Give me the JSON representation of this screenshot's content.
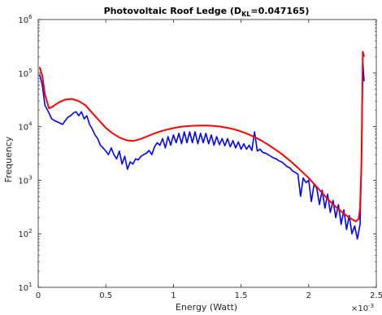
{
  "chart_data": {
    "type": "line",
    "title": "Photovoltaic Roof Ledge (D",
    "title_subscript": "KL",
    "title_suffix": "=0.047165)",
    "xlabel": "Energy (Watt)",
    "ylabel": "Frequency",
    "x_exponent_base": "×10",
    "x_exponent_power": "-3",
    "xlim": [
      0,
      0.0025
    ],
    "ylim": [
      10,
      1000000
    ],
    "yscale": "log",
    "grid": false,
    "x_ticks": [
      {
        "value": 0,
        "label": "0"
      },
      {
        "value": 0.0005,
        "label": "0.5"
      },
      {
        "value": 0.001,
        "label": "1"
      },
      {
        "value": 0.0015,
        "label": "1.5"
      },
      {
        "value": 0.002,
        "label": "2"
      },
      {
        "value": 0.0025,
        "label": "2.5"
      }
    ],
    "y_ticks": [
      {
        "value": 10,
        "base": "10",
        "power": "1"
      },
      {
        "value": 100,
        "base": "10",
        "power": "2"
      },
      {
        "value": 1000,
        "base": "10",
        "power": "3"
      },
      {
        "value": 10000,
        "base": "10",
        "power": "4"
      },
      {
        "value": 100000,
        "base": "10",
        "power": "5"
      },
      {
        "value": 1000000,
        "base": "10",
        "power": "6"
      }
    ],
    "series": [
      {
        "color": "#0000ff",
        "x": [
          1e-05,
          3e-05,
          5e-05,
          8e-05,
          0.0001,
          0.00012,
          0.00015,
          0.00018,
          0.0002,
          0.00022,
          0.00024,
          0.00026,
          0.00028,
          0.0003,
          0.00032,
          0.00034,
          0.00036,
          0.00038,
          0.0004,
          0.00042,
          0.00044,
          0.00046,
          0.00048,
          0.0005,
          0.00052,
          0.00054,
          0.00056,
          0.00058,
          0.0006,
          0.00062,
          0.00064,
          0.00066,
          0.00068,
          0.0007,
          0.00072,
          0.00074,
          0.00076,
          0.00078,
          0.0008,
          0.00082,
          0.00084,
          0.00086,
          0.00088,
          0.0009,
          0.00092,
          0.00094,
          0.00096,
          0.00098,
          0.001,
          0.00102,
          0.00104,
          0.00106,
          0.00108,
          0.0011,
          0.00112,
          0.00114,
          0.00116,
          0.00118,
          0.0012,
          0.00122,
          0.00124,
          0.00126,
          0.00128,
          0.0013,
          0.00132,
          0.00134,
          0.00136,
          0.00138,
          0.0014,
          0.00142,
          0.00144,
          0.00146,
          0.00148,
          0.0015,
          0.00152,
          0.00154,
          0.00156,
          0.00158,
          0.0016,
          0.00162,
          0.00164,
          0.00166,
          0.00168,
          0.0017,
          0.00172,
          0.00174,
          0.00176,
          0.00178,
          0.0018,
          0.00182,
          0.00184,
          0.00186,
          0.00188,
          0.0019,
          0.00192,
          0.00194,
          0.00196,
          0.00198,
          0.002,
          0.00202,
          0.00204,
          0.00206,
          0.00208,
          0.0021,
          0.00212,
          0.00214,
          0.00216,
          0.00218,
          0.0022,
          0.00222,
          0.00224,
          0.00226,
          0.00228,
          0.0023,
          0.00232,
          0.00234,
          0.00236,
          0.00237,
          0.00238,
          0.00239,
          0.0024,
          0.00241
        ],
        "y": [
          95000,
          60000,
          25000,
          18000,
          14000,
          13000,
          12000,
          11000,
          13000,
          15000,
          16000,
          18000,
          19000,
          16000,
          19000,
          14000,
          16000,
          11000,
          9000,
          7000,
          6000,
          4500,
          4000,
          3500,
          3000,
          4000,
          3000,
          2500,
          3500,
          2000,
          2800,
          1600,
          2200,
          2000,
          2500,
          2400,
          2800,
          3000,
          3200,
          3600,
          3000,
          4200,
          5000,
          4500,
          6000,
          4000,
          6500,
          4500,
          7000,
          5000,
          7500,
          4800,
          8000,
          5000,
          8000,
          5000,
          8000,
          4800,
          7500,
          5000,
          7500,
          4800,
          7000,
          4500,
          6500,
          4600,
          6000,
          4400,
          6000,
          4200,
          5500,
          4000,
          5200,
          3800,
          4800,
          3800,
          4500,
          3600,
          8000,
          3500,
          3800,
          3300,
          3200,
          3000,
          2800,
          2600,
          2500,
          2300,
          2200,
          2000,
          1800,
          1700,
          1500,
          1400,
          1300,
          500,
          1100,
          900,
          1000,
          400,
          850,
          700,
          350,
          650,
          300,
          550,
          250,
          420,
          200,
          350,
          150,
          280,
          120,
          220,
          100,
          140,
          80,
          110,
          150,
          2000,
          160000,
          70000
        ]
      },
      {
        "color": "#ff0000",
        "x": [
          1e-05,
          3e-05,
          5e-05,
          8e-05,
          0.0001,
          0.00013,
          0.00016,
          0.0002,
          0.00025,
          0.0003,
          0.00035,
          0.0004,
          0.00045,
          0.0005,
          0.00055,
          0.0006,
          0.00065,
          0.0007,
          0.00075,
          0.0008,
          0.00085,
          0.0009,
          0.00095,
          0.001,
          0.00105,
          0.0011,
          0.00115,
          0.0012,
          0.00125,
          0.0013,
          0.00135,
          0.0014,
          0.00145,
          0.0015,
          0.00155,
          0.0016,
          0.00165,
          0.0017,
          0.00175,
          0.0018,
          0.00185,
          0.0019,
          0.00195,
          0.002,
          0.00205,
          0.0021,
          0.00215,
          0.0022,
          0.00225,
          0.0023,
          0.00235,
          0.00237,
          0.00238,
          0.00239,
          0.0024,
          0.00241
        ],
        "y": [
          130000,
          90000,
          40000,
          22000,
          23000,
          26000,
          29000,
          32000,
          33000,
          30000,
          25000,
          18000,
          13000,
          9500,
          7500,
          6300,
          5600,
          5400,
          5800,
          6500,
          7300,
          8100,
          8800,
          9400,
          9900,
          10200,
          10400,
          10500,
          10500,
          10300,
          10000,
          9500,
          8900,
          8100,
          7300,
          6400,
          5500,
          4600,
          3800,
          3100,
          2450,
          1900,
          1450,
          1100,
          800,
          580,
          420,
          320,
          250,
          200,
          170,
          190,
          300,
          2000,
          250000,
          200000
        ]
      }
    ]
  }
}
